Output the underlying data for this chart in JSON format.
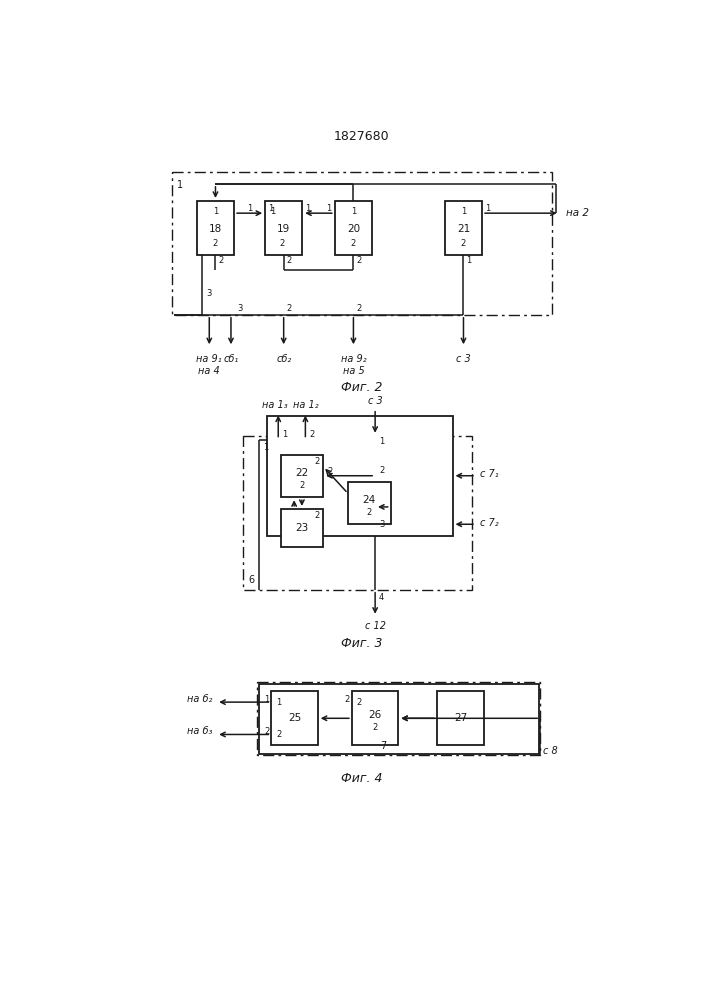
{
  "title": "1827680",
  "bg_color": "#ffffff",
  "line_color": "#1a1a1a",
  "fig2_caption": "Фиг. 2",
  "fig3_caption": "Фиг. 3",
  "fig4_caption": "Фиг. 4"
}
